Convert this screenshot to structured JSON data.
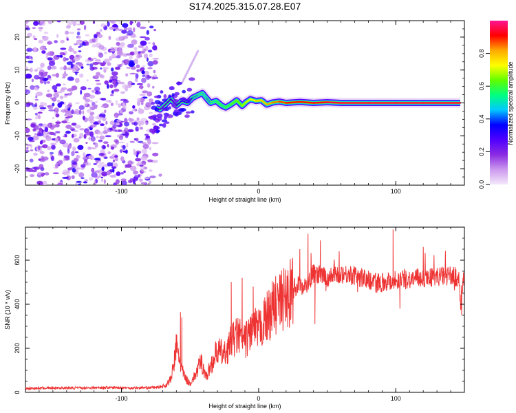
{
  "chart_data": [
    {
      "type": "heatmap",
      "title": "S174.2025.315.07.28.E07",
      "xlabel": "Height of straight line (km)",
      "ylabel": "Frequency (Hz)",
      "xlim": [
        -170,
        150
      ],
      "ylim": [
        -25,
        25
      ],
      "xticks": [
        -100,
        0,
        100
      ],
      "xtick_labels": [
        "-100",
        "0",
        "100"
      ],
      "yticks": [
        -20,
        -10,
        0,
        10,
        20
      ],
      "ytick_labels": [
        "-20",
        "-10",
        "0",
        "10",
        "20"
      ],
      "colorbar": {
        "label": "Normalized spectral amplitude",
        "range": [
          0,
          1
        ],
        "ticks": [
          0.0,
          0.2,
          0.4,
          0.6,
          0.8
        ],
        "tick_labels": [
          "0.0",
          "0.2",
          "0.4",
          "0.6",
          "0.8"
        ],
        "colors": [
          "#f4e8fb",
          "#cc99ee",
          "#8a2be2",
          "#5000ff",
          "#0000ff",
          "#00c8ff",
          "#00ff80",
          "#60ff00",
          "#ffff00",
          "#ffaa00",
          "#ff0000",
          "#ff1493"
        ]
      },
      "noise_region_x": [
        -170,
        -75
      ],
      "signal_trace": {
        "x": [
          -75,
          -72,
          -68,
          -64,
          -60,
          -56,
          -52,
          -48,
          -44,
          -41,
          -38,
          -35,
          -31,
          -27,
          -24,
          -20,
          -16,
          -12,
          -9,
          -6,
          -2,
          2,
          6,
          10,
          15,
          20,
          30,
          40,
          50,
          60,
          80,
          100,
          120,
          147
        ],
        "y": [
          -1.5,
          -2.0,
          -0.5,
          1.2,
          -0.8,
          0.6,
          0.0,
          1.6,
          2.4,
          3.0,
          1.4,
          0.0,
          0.6,
          -0.8,
          -1.4,
          -0.4,
          0.8,
          -0.9,
          0.3,
          1.1,
          0.6,
          0.8,
          -0.5,
          0.1,
          0.4,
          0.0,
          0.3,
          0.0,
          0.2,
          0.0,
          0.0,
          0.0,
          0.0,
          0.0
        ],
        "amplitude": [
          0.2,
          0.25,
          0.3,
          0.3,
          0.3,
          0.35,
          0.35,
          0.4,
          0.45,
          0.5,
          0.4,
          0.45,
          0.55,
          0.55,
          0.5,
          0.6,
          0.6,
          0.65,
          0.7,
          0.7,
          0.75,
          0.8,
          0.8,
          0.85,
          0.85,
          0.9,
          0.9,
          0.9,
          0.95,
          0.95,
          0.95,
          0.95,
          0.95,
          0.95
        ]
      },
      "faint_branch": {
        "x": [
          -56,
          -50,
          -44
        ],
        "y": [
          6,
          11,
          16
        ]
      }
    },
    {
      "type": "line",
      "title": "",
      "xlabel": "Height of straight line (km)",
      "ylabel": "SNR (10 * v/v)",
      "xlim": [
        -170,
        150
      ],
      "ylim": [
        0,
        750
      ],
      "xticks": [
        -100,
        0,
        100
      ],
      "xtick_labels": [
        "-100",
        "0",
        "100"
      ],
      "yticks": [
        0,
        200,
        400,
        600
      ],
      "ytick_labels": [
        "0",
        "200",
        "400",
        "600"
      ],
      "color": "#ee3333",
      "series": [
        {
          "name": "SNR",
          "x": [
            -170,
            -150,
            -130,
            -110,
            -90,
            -75,
            -68,
            -64,
            -62,
            -60,
            -58,
            -56,
            -53,
            -50,
            -46,
            -42,
            -38,
            -35,
            -30,
            -25,
            -20,
            -15,
            -10,
            -5,
            0,
            5,
            10,
            15,
            20,
            25,
            30,
            35,
            40,
            50,
            60,
            70,
            80,
            90,
            100,
            110,
            120,
            130,
            140,
            146,
            147,
            150
          ],
          "y": [
            18,
            20,
            20,
            22,
            20,
            22,
            30,
            60,
            120,
            210,
            160,
            100,
            60,
            40,
            80,
            140,
            70,
            120,
            190,
            170,
            230,
            260,
            230,
            290,
            280,
            330,
            380,
            410,
            430,
            470,
            490,
            480,
            540,
            520,
            540,
            530,
            510,
            500,
            510,
            515,
            520,
            525,
            530,
            520,
            400,
            540
          ],
          "spikes": [
            {
              "x": -57,
              "y": 365
            },
            {
              "x": -56,
              "y": 340
            },
            {
              "x": -20,
              "y": 500
            },
            {
              "x": -12,
              "y": 520
            },
            {
              "x": -4,
              "y": 480
            },
            {
              "x": 30,
              "y": 650
            },
            {
              "x": 36,
              "y": 720
            },
            {
              "x": 40,
              "y": 580
            },
            {
              "x": 41,
              "y": 310
            },
            {
              "x": 45,
              "y": 690
            },
            {
              "x": 98,
              "y": 740
            },
            {
              "x": 103,
              "y": 380
            },
            {
              "x": 120,
              "y": 660
            },
            {
              "x": 148,
              "y": 350
            }
          ]
        }
      ]
    }
  ]
}
